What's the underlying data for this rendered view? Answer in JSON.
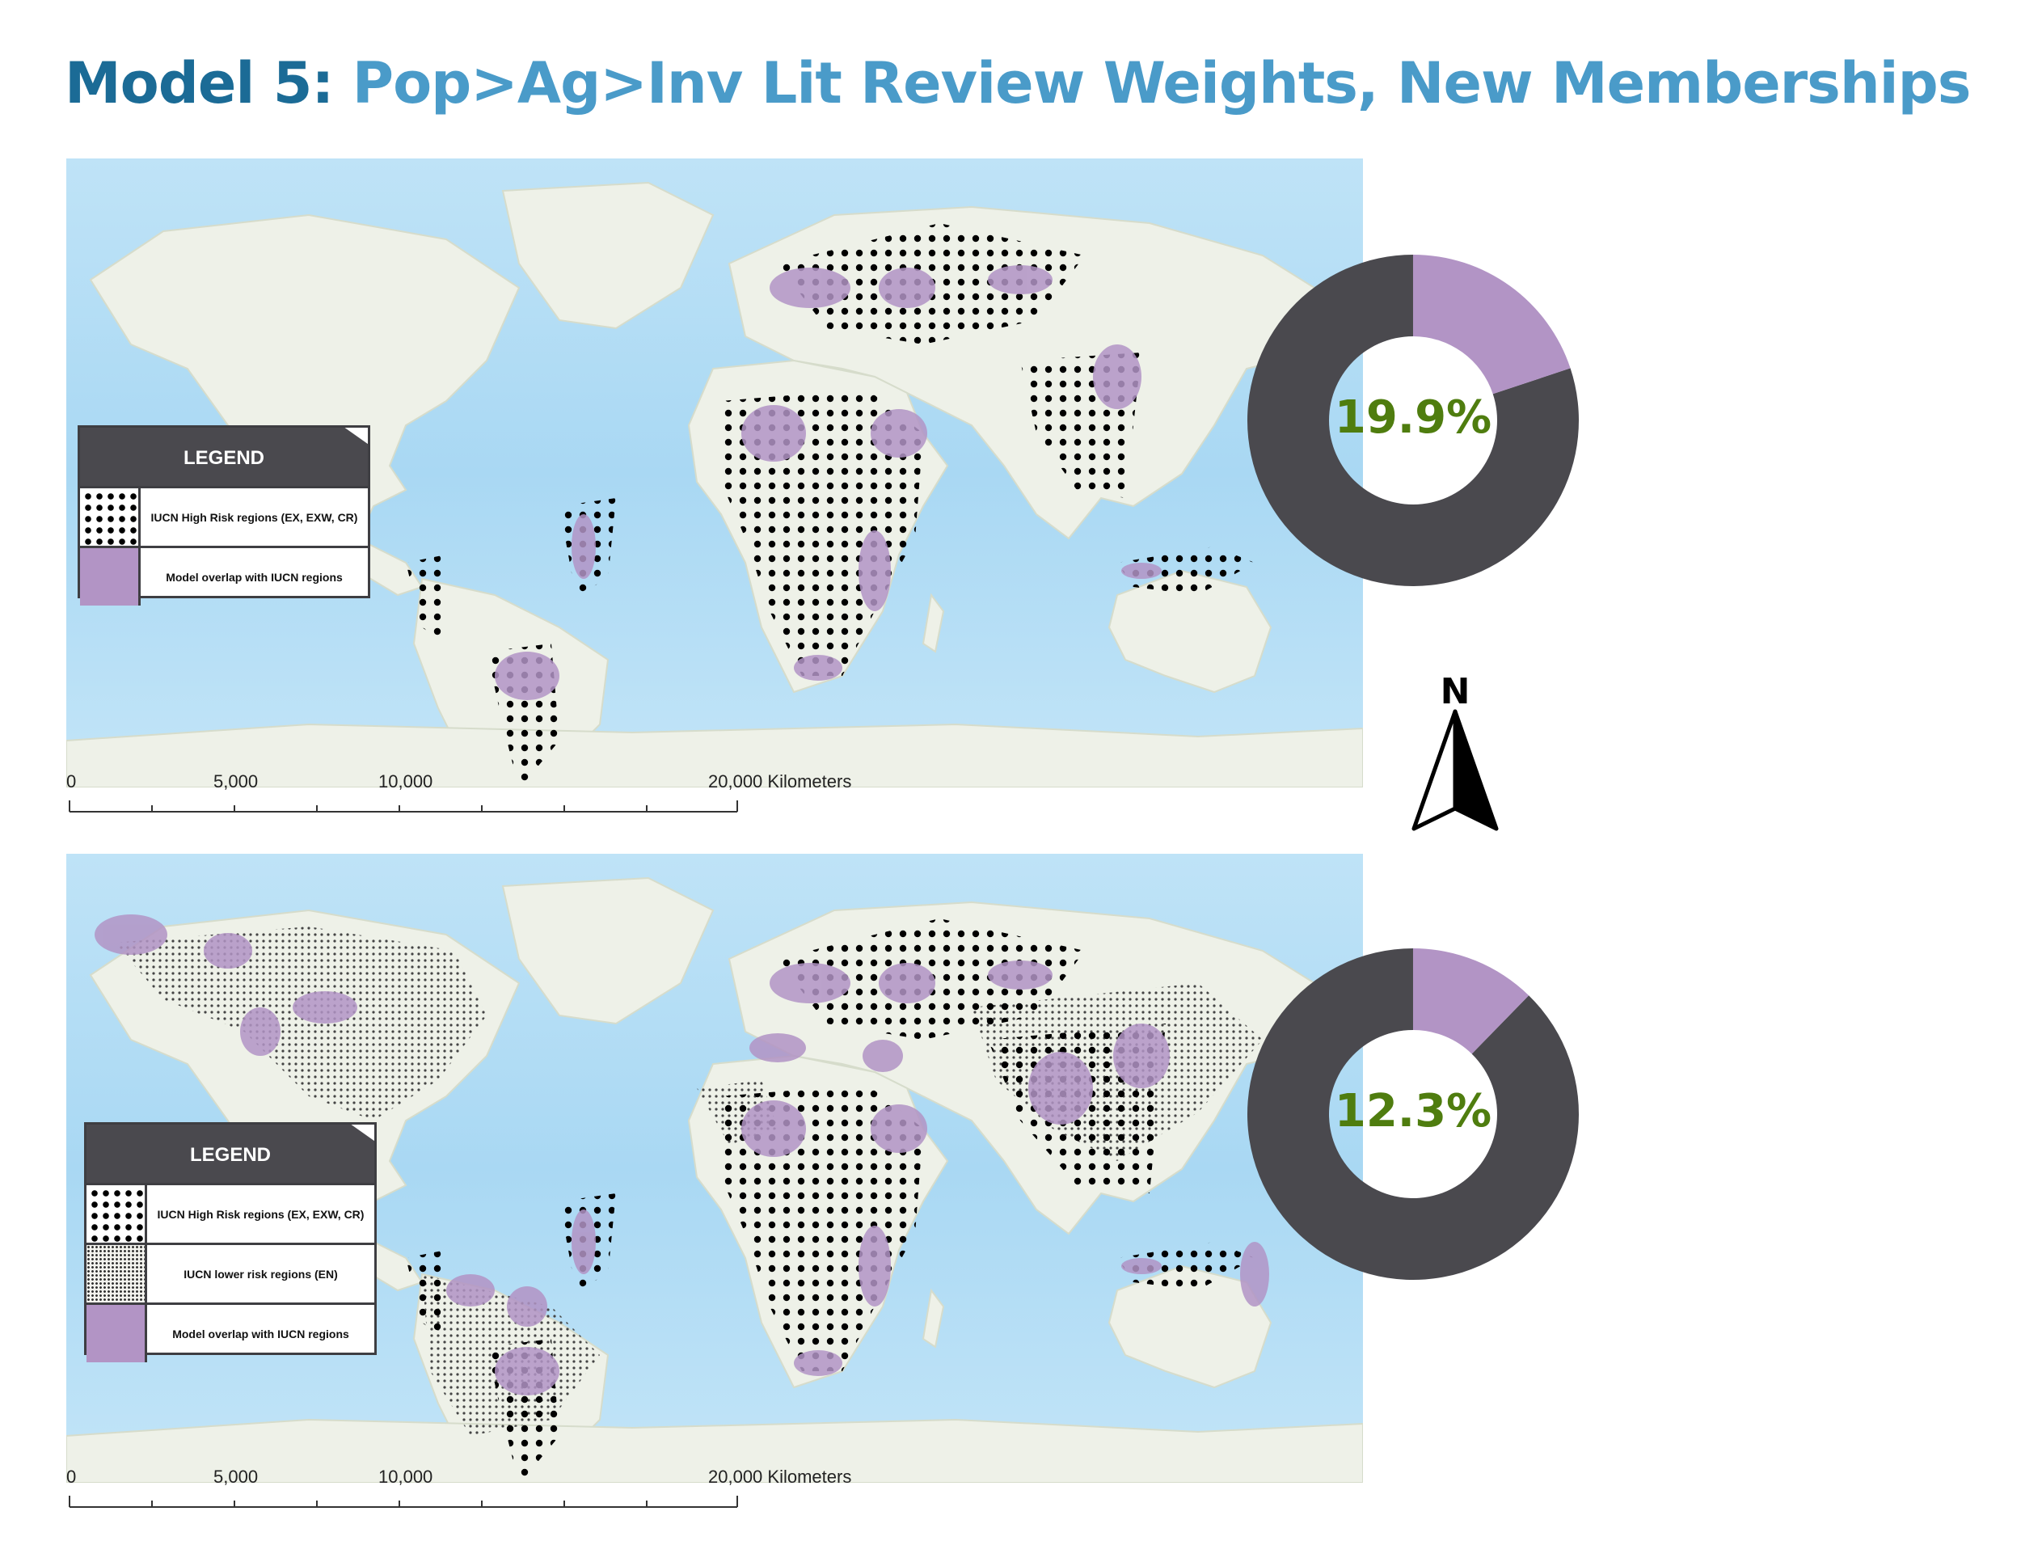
{
  "title": {
    "lead": "Model 5:",
    "rest": "Pop>Ag>Inv Lit Review Weights, New Memberships"
  },
  "top_map": {
    "legend": {
      "heading": "LEGEND",
      "items": [
        {
          "label": "IUCN High Risk regions (EX, EXW, CR)",
          "swatch": "high-risk-dots"
        },
        {
          "label": "Model overlap with IUCN regions",
          "swatch": "overlap-purple"
        }
      ]
    },
    "scale": {
      "ticks": [
        "0",
        "5,000",
        "10,000",
        "20,000 Kilometers"
      ]
    },
    "overlap_percent": 19.9,
    "overlap_label": "19.9%"
  },
  "bottom_map": {
    "legend": {
      "heading": "LEGEND",
      "items": [
        {
          "label": "IUCN High Risk regions (EX, EXW, CR)",
          "swatch": "high-risk-dots"
        },
        {
          "label": "IUCN lower risk regions (EN)",
          "swatch": "lower-risk-dots"
        },
        {
          "label": "Model overlap with IUCN regions",
          "swatch": "overlap-purple"
        }
      ]
    },
    "scale": {
      "ticks": [
        "0",
        "5,000",
        "10,000",
        "20,000 Kilometers"
      ]
    },
    "overlap_percent": 12.3,
    "overlap_label": "12.3%"
  },
  "north_arrow": {
    "label": "N"
  },
  "colors": {
    "title_lead": "#1b6b96",
    "title_rest": "#4a9bc9",
    "ocean": "#aed9f3",
    "land": "#eef1e8",
    "overlap": "#b294c5",
    "donut_rest": "#4a494e",
    "percent_text": "#4f7d0f"
  }
}
